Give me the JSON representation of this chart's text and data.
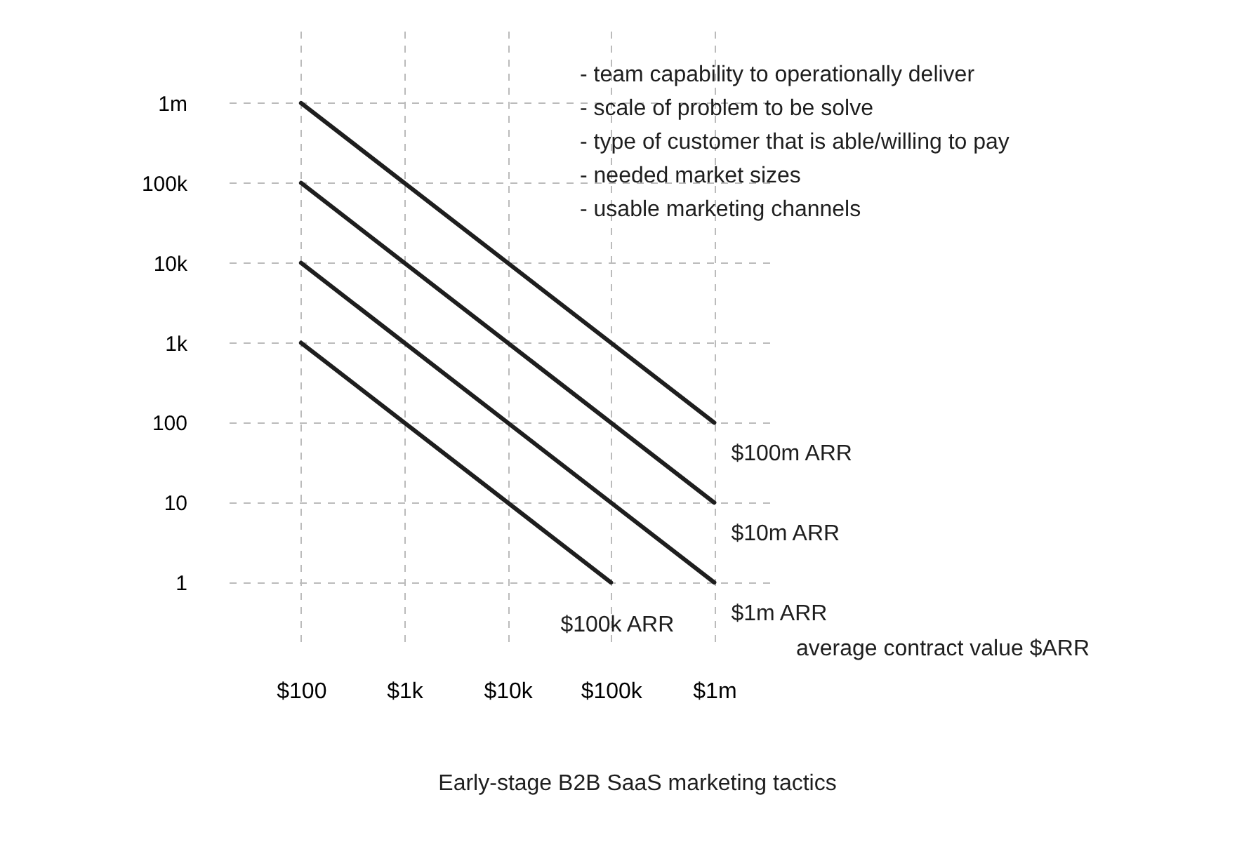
{
  "chart_data": {
    "type": "line",
    "xlabel": "average contract value $ARR",
    "series": [
      {
        "name": "$100m ARR",
        "color": "#1e1e1e",
        "x": [
          100,
          1000000
        ],
        "values": [
          1000000,
          100
        ]
      },
      {
        "name": "$10m ARR",
        "color": "#1e1e1e",
        "x": [
          100,
          1000000
        ],
        "values": [
          100000,
          10
        ]
      },
      {
        "name": "$1m ARR",
        "color": "#1e1e1e",
        "x": [
          100,
          1000000
        ],
        "values": [
          10000,
          1
        ]
      },
      {
        "name": "$100k ARR",
        "color": "#1e1e1e",
        "x": [
          100,
          100000
        ],
        "values": [
          1000,
          1
        ]
      }
    ],
    "log": "xy",
    "xlim": [
      20,
      4000000
    ],
    "ylim": [
      0.15,
      8000000
    ],
    "xticks": [
      {
        "value": 100,
        "label": "$100"
      },
      {
        "value": 1000,
        "label": "$1k"
      },
      {
        "value": 10000,
        "label": "$10k"
      },
      {
        "value": 100000,
        "label": "$100k"
      },
      {
        "value": 1000000,
        "label": "$1m"
      }
    ],
    "yticks": [
      1,
      10,
      100,
      {
        "value": 1000,
        "label": "1k"
      },
      {
        "value": 10000,
        "label": "10k"
      },
      {
        "value": 100000,
        "label": "100k"
      },
      {
        "value": 1000000,
        "label": "1m"
      }
    ],
    "grid": true,
    "legend": false,
    "line_style": "solid",
    "marker": "none",
    "annotations": [
      "- team capability to operationally deliver",
      "- scale of problem to be solve",
      "- type of customer that is able/willing to pay",
      "- needed market sizes",
      "- usable marketing channels",
      "Early-stage B2B SaaS marketing tactics"
    ]
  }
}
